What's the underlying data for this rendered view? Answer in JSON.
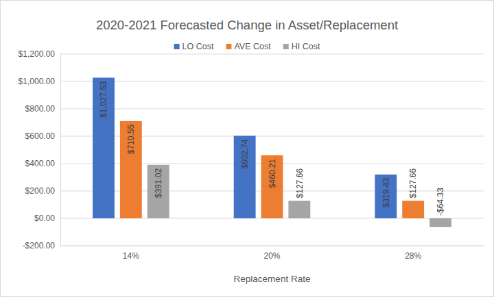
{
  "chart_data": {
    "type": "bar",
    "title": "2020-2021 Forecasted Change in Asset/Replacement",
    "x_label": "Replacement Rate",
    "categories": [
      "14%",
      "20%",
      "28%"
    ],
    "series": [
      {
        "name": "LO Cost",
        "color": "#4472c4",
        "values": [
          1027.53,
          602.74,
          319.43
        ],
        "value_labels": [
          "$1,027.53",
          "$602.74",
          "$319.43"
        ]
      },
      {
        "name": "AVE Cost",
        "color": "#ed7d31",
        "values": [
          710.55,
          460.21,
          127.66
        ],
        "value_labels": [
          "$710.55",
          "$460.21",
          "$127.66"
        ]
      },
      {
        "name": "HI Cost",
        "color": "#a5a5a5",
        "values": [
          391.02,
          127.66,
          -64.33
        ],
        "value_labels": [
          "$391.02",
          "$127.66",
          "-$64.33"
        ]
      }
    ],
    "ylim": [
      -200,
      1200
    ],
    "yticks": [
      {
        "value": -200,
        "label": "-$200.00"
      },
      {
        "value": 0,
        "label": "$0.00"
      },
      {
        "value": 200,
        "label": "$200.00"
      },
      {
        "value": 400,
        "label": "$400.00"
      },
      {
        "value": 600,
        "label": "$600.00"
      },
      {
        "value": 800,
        "label": "$800.00"
      },
      {
        "value": 1000,
        "label": "$1,000.00"
      },
      {
        "value": 1200,
        "label": "$1,200.00"
      }
    ],
    "grid": true,
    "legend": "top",
    "data_labels": true
  }
}
